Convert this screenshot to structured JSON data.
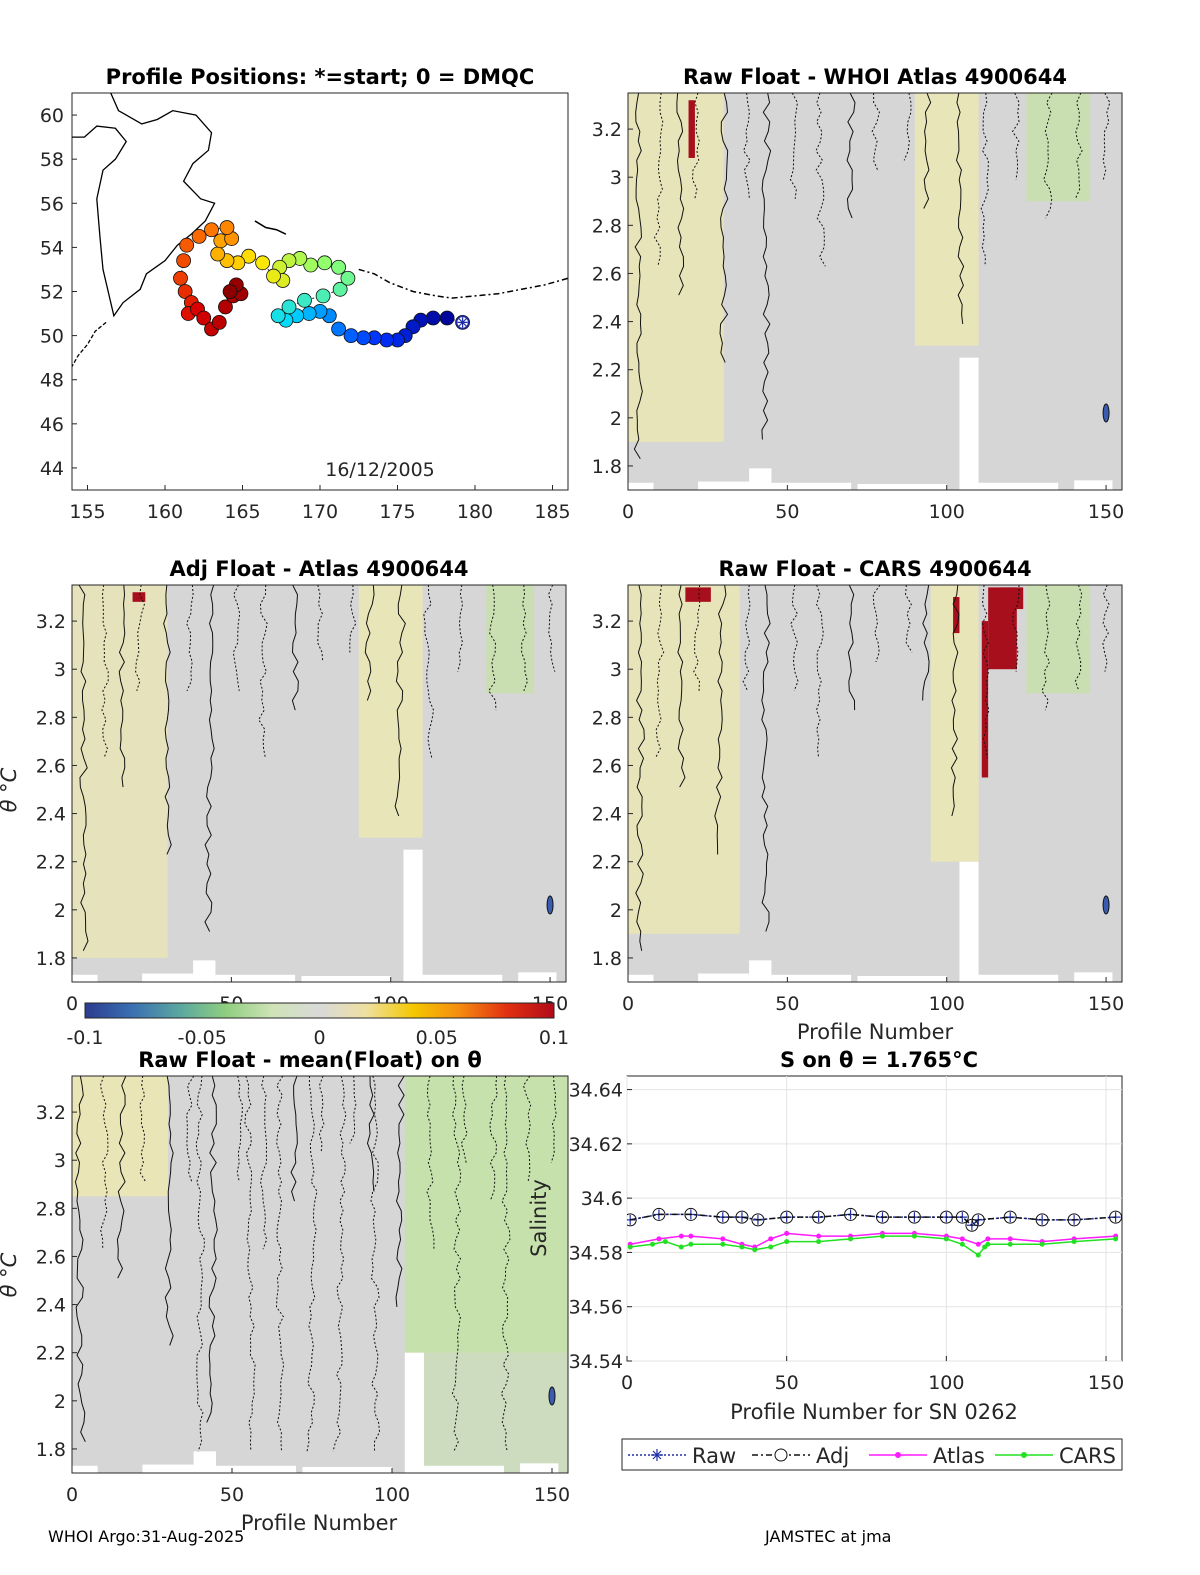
{
  "colors": {
    "heat_neutral": "#d6d6d6",
    "heat_warm": "#ece8b0",
    "heat_hot": "#a80f1d",
    "heat_green": "#c3e3a3",
    "raw": "#1f2ea8",
    "adj": "#111111",
    "atlas": "#ff1aff",
    "cars": "#22e022"
  },
  "colorbar": {
    "ticks": [
      "-0.1",
      "-0.05",
      "0",
      "0.05",
      "0.1"
    ],
    "stops": [
      "#2b3c8f",
      "#3a6fb2",
      "#5aa6a0",
      "#8fce7f",
      "#cfe3b7",
      "#d9d9d9",
      "#eee0a0",
      "#f4c800",
      "#f58a10",
      "#e03010",
      "#b20a1a"
    ]
  },
  "chart_data": [
    {
      "type": "scatter",
      "title": "Profile Positions: *=start; 0 = DMQC",
      "annotation": "16/12/2005",
      "xlim": [
        154,
        186
      ],
      "ylim": [
        43,
        61
      ],
      "x_ticks": [
        "155",
        "160",
        "165",
        "170",
        "175",
        "180",
        "185"
      ],
      "y_ticks": [
        "44",
        "46",
        "48",
        "50",
        "52",
        "54",
        "56",
        "58",
        "60"
      ],
      "track": [
        [
          179.2,
          50.6
        ],
        [
          178.2,
          50.8
        ],
        [
          177.3,
          50.8
        ],
        [
          176.5,
          50.7
        ],
        [
          176.0,
          50.4
        ],
        [
          175.5,
          50.0
        ],
        [
          175.0,
          49.8
        ],
        [
          174.3,
          49.8
        ],
        [
          173.5,
          49.9
        ],
        [
          172.8,
          49.9
        ],
        [
          172.0,
          50.0
        ],
        [
          171.2,
          50.3
        ],
        [
          170.6,
          50.9
        ],
        [
          170.0,
          51.1
        ],
        [
          169.3,
          51.0
        ],
        [
          168.5,
          50.9
        ],
        [
          167.8,
          50.7
        ],
        [
          167.3,
          50.9
        ],
        [
          168.0,
          51.3
        ],
        [
          169.0,
          51.6
        ],
        [
          170.2,
          51.8
        ],
        [
          171.3,
          52.1
        ],
        [
          171.8,
          52.6
        ],
        [
          171.2,
          53.1
        ],
        [
          170.3,
          53.3
        ],
        [
          169.4,
          53.2
        ],
        [
          168.7,
          53.5
        ],
        [
          168.0,
          53.4
        ],
        [
          167.4,
          53.1
        ],
        [
          167.6,
          52.5
        ],
        [
          167.0,
          52.7
        ],
        [
          166.3,
          53.3
        ],
        [
          165.4,
          53.6
        ],
        [
          164.7,
          53.3
        ],
        [
          164.0,
          53.4
        ],
        [
          163.4,
          53.7
        ],
        [
          163.6,
          54.3
        ],
        [
          164.3,
          54.4
        ],
        [
          164.0,
          54.9
        ],
        [
          163.0,
          54.8
        ],
        [
          162.2,
          54.5
        ],
        [
          161.4,
          54.1
        ],
        [
          161.2,
          53.4
        ],
        [
          161.0,
          52.6
        ],
        [
          161.3,
          52.0
        ],
        [
          161.7,
          51.5
        ],
        [
          161.5,
          51.0
        ],
        [
          162.1,
          51.2
        ],
        [
          162.5,
          50.8
        ],
        [
          163.0,
          50.3
        ],
        [
          163.5,
          50.6
        ],
        [
          163.9,
          51.3
        ],
        [
          164.4,
          51.8
        ],
        [
          164.9,
          51.9
        ],
        [
          164.6,
          52.3
        ],
        [
          164.2,
          52.0
        ]
      ],
      "start_marker": [
        179.2,
        50.6
      ]
    },
    {
      "type": "heatmap",
      "title": "Raw Float - WHOI Atlas  4900644",
      "xlim": [
        0,
        155
      ],
      "ylim": [
        1.7,
        3.35
      ],
      "x_ticks": [
        "0",
        "50",
        "100",
        "150"
      ],
      "y_ticks": [
        "1.8",
        "2",
        "2.2",
        "2.4",
        "2.6",
        "2.8",
        "3",
        "3.2"
      ]
    },
    {
      "type": "heatmap",
      "title": "Adj Float - Atlas  4900644",
      "ylabel": "θ °C",
      "xlim": [
        0,
        155
      ],
      "ylim": [
        1.7,
        3.35
      ],
      "x_ticks": [
        "0",
        "50",
        "100",
        "150"
      ],
      "y_ticks": [
        "1.8",
        "2",
        "2.2",
        "2.4",
        "2.6",
        "2.8",
        "3",
        "3.2"
      ]
    },
    {
      "type": "heatmap",
      "title": "Raw Float - CARS  4900644",
      "xlabel": "Profile Number",
      "xlim": [
        0,
        155
      ],
      "ylim": [
        1.7,
        3.35
      ],
      "x_ticks": [
        "0",
        "50",
        "100",
        "150"
      ],
      "y_ticks": [
        "1.8",
        "2",
        "2.2",
        "2.4",
        "2.6",
        "2.8",
        "3",
        "3.2"
      ]
    },
    {
      "type": "heatmap",
      "title": "Raw Float - mean(Float) on θ",
      "xlabel": "Profile Number",
      "ylabel": "θ °C",
      "xlim": [
        0,
        155
      ],
      "ylim": [
        1.7,
        3.35
      ],
      "x_ticks": [
        "0",
        "50",
        "100",
        "150"
      ],
      "y_ticks": [
        "1.8",
        "2",
        "2.2",
        "2.4",
        "2.6",
        "2.8",
        "3",
        "3.2"
      ]
    },
    {
      "type": "line",
      "title": "S on θ = 1.765°C",
      "xlabel": "Profile Number for SN 0262",
      "ylabel": "Salinity",
      "xlim": [
        0,
        155
      ],
      "ylim": [
        34.54,
        34.645
      ],
      "x_ticks": [
        "0",
        "50",
        "100",
        "150"
      ],
      "y_ticks": [
        "34.54",
        "34.56",
        "34.58",
        "34.6",
        "34.62",
        "34.64"
      ],
      "grid": true,
      "legend": [
        "Raw",
        "Adj",
        "Atlas",
        "CARS"
      ],
      "legend_position": "below",
      "series": [
        {
          "name": "Raw",
          "points": [
            [
              1,
              34.592
            ],
            [
              10,
              34.594
            ],
            [
              20,
              34.594
            ],
            [
              30,
              34.593
            ],
            [
              36,
              34.593
            ],
            [
              41,
              34.592
            ],
            [
              50,
              34.593
            ],
            [
              60,
              34.593
            ],
            [
              70,
              34.594
            ],
            [
              80,
              34.593
            ],
            [
              90,
              34.593
            ],
            [
              100,
              34.593
            ],
            [
              105,
              34.593
            ],
            [
              108,
              34.59
            ],
            [
              110,
              34.592
            ],
            [
              120,
              34.593
            ],
            [
              130,
              34.592
            ],
            [
              140,
              34.592
            ],
            [
              153,
              34.593
            ]
          ]
        },
        {
          "name": "Adj",
          "points": [
            [
              1,
              34.592
            ],
            [
              10,
              34.594
            ],
            [
              20,
              34.594
            ],
            [
              30,
              34.593
            ],
            [
              36,
              34.593
            ],
            [
              41,
              34.592
            ],
            [
              50,
              34.593
            ],
            [
              60,
              34.593
            ],
            [
              70,
              34.594
            ],
            [
              80,
              34.593
            ],
            [
              90,
              34.593
            ],
            [
              100,
              34.593
            ],
            [
              105,
              34.593
            ],
            [
              108,
              34.59
            ],
            [
              110,
              34.592
            ],
            [
              120,
              34.593
            ],
            [
              130,
              34.592
            ],
            [
              140,
              34.592
            ],
            [
              153,
              34.593
            ]
          ]
        },
        {
          "name": "Atlas",
          "points": [
            [
              1,
              34.583
            ],
            [
              10,
              34.585
            ],
            [
              17,
              34.586
            ],
            [
              20,
              34.586
            ],
            [
              30,
              34.585
            ],
            [
              36,
              34.583
            ],
            [
              40,
              34.582
            ],
            [
              45,
              34.585
            ],
            [
              50,
              34.587
            ],
            [
              60,
              34.586
            ],
            [
              70,
              34.586
            ],
            [
              80,
              34.587
            ],
            [
              90,
              34.587
            ],
            [
              100,
              34.586
            ],
            [
              105,
              34.585
            ],
            [
              110,
              34.583
            ],
            [
              113,
              34.585
            ],
            [
              120,
              34.585
            ],
            [
              130,
              34.584
            ],
            [
              140,
              34.585
            ],
            [
              153,
              34.586
            ]
          ]
        },
        {
          "name": "CARS",
          "points": [
            [
              1,
              34.582
            ],
            [
              8,
              34.583
            ],
            [
              12,
              34.584
            ],
            [
              17,
              34.582
            ],
            [
              20,
              34.583
            ],
            [
              30,
              34.583
            ],
            [
              36,
              34.582
            ],
            [
              40,
              34.581
            ],
            [
              45,
              34.582
            ],
            [
              50,
              34.584
            ],
            [
              60,
              34.584
            ],
            [
              70,
              34.585
            ],
            [
              80,
              34.586
            ],
            [
              90,
              34.586
            ],
            [
              100,
              34.585
            ],
            [
              105,
              34.583
            ],
            [
              110,
              34.579
            ],
            [
              112,
              34.582
            ],
            [
              113,
              34.583
            ],
            [
              120,
              34.583
            ],
            [
              130,
              34.583
            ],
            [
              140,
              34.584
            ],
            [
              153,
              34.585
            ]
          ]
        }
      ]
    }
  ],
  "footer": {
    "left": "WHOI Argo:31-Aug-2025",
    "right": "JAMSTEC at jma"
  }
}
